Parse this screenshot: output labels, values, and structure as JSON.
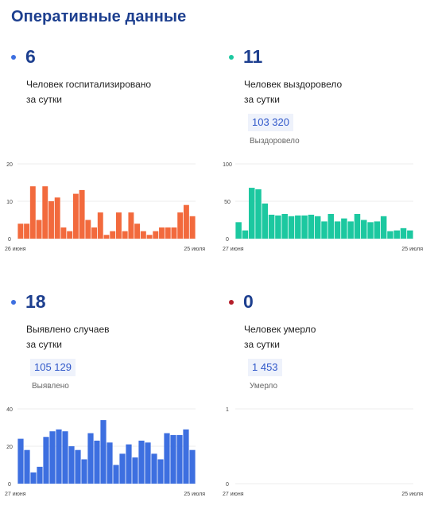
{
  "title": "Оперативные данные",
  "cards": [
    {
      "count": "6",
      "line1": "Человек госпитализировано",
      "line2": "за сутки",
      "total": "",
      "total_label": "",
      "dot_color": "#3d6fe0"
    },
    {
      "count": "11",
      "line1": "Человек выздоровело",
      "line2": "за сутки",
      "total": "103 320",
      "total_label": "Выздоровело",
      "dot_color": "#1cc8a0"
    },
    {
      "count": "18",
      "line1": "Выявлено случаев",
      "line2": "за сутки",
      "total": "105 129",
      "total_label": "Выявлено",
      "dot_color": "#3d6fe0"
    },
    {
      "count": "0",
      "line1": "Человек умерло",
      "line2": "за сутки",
      "total": "1 453",
      "total_label": "Умерло",
      "dot_color": "#b41e2a"
    }
  ],
  "chart_data": [
    {
      "type": "bar",
      "color": "#f26a3d",
      "yticks": [
        "0",
        "10",
        "20"
      ],
      "ylim": [
        0,
        20
      ],
      "x_start": "26 июня",
      "x_end": "25 июля",
      "values": [
        4,
        4,
        14,
        5,
        14,
        10,
        11,
        3,
        2,
        12,
        13,
        5,
        3,
        7,
        1,
        2,
        7,
        2,
        7,
        4,
        2,
        1,
        2,
        3,
        3,
        3,
        7,
        9,
        6
      ]
    },
    {
      "type": "bar",
      "color": "#1cc8a0",
      "yticks": [
        "0",
        "50",
        "100"
      ],
      "ylim": [
        0,
        100
      ],
      "x_start": "27 июня",
      "x_end": "25 июля",
      "values": [
        22,
        11,
        68,
        66,
        47,
        32,
        31,
        33,
        30,
        31,
        31,
        32,
        30,
        23,
        33,
        23,
        27,
        23,
        33,
        25,
        22,
        23,
        30,
        10,
        11,
        14,
        11
      ]
    },
    {
      "type": "bar",
      "color": "#3d6fe0",
      "yticks": [
        "0",
        "20",
        "40"
      ],
      "ylim": [
        0,
        40
      ],
      "x_start": "27 июня",
      "x_end": "25 июля",
      "values": [
        24,
        18,
        6,
        9,
        25,
        28,
        29,
        28,
        20,
        18,
        13,
        27,
        23,
        34,
        22,
        10,
        16,
        21,
        14,
        23,
        22,
        16,
        13,
        27,
        26,
        26,
        29,
        18
      ]
    },
    {
      "type": "bar",
      "color": "#cccccc",
      "yticks": [
        "0",
        "1"
      ],
      "ylim": [
        0,
        1
      ],
      "x_start": "27 июня",
      "x_end": "25 июля",
      "values": []
    }
  ]
}
